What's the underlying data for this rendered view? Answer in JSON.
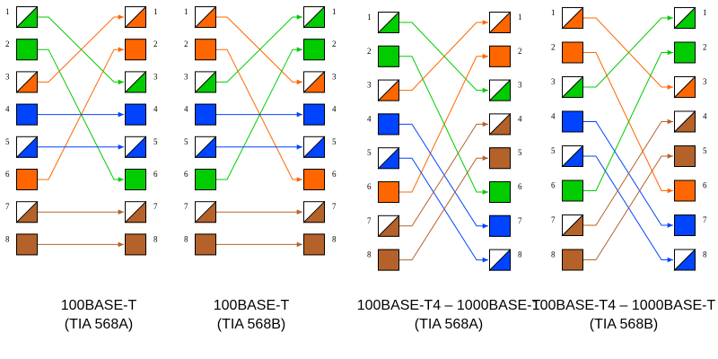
{
  "colors": {
    "green": "#00cc00",
    "orange": "#ff6600",
    "blue": "#0044ff",
    "brown": "#b5622a",
    "white": "#ffffff",
    "border": "#000000"
  },
  "diagrams": [
    {
      "title": "100BASE-T",
      "subtitle": "(TIA 568A)",
      "left_pins": [
        "1",
        "2",
        "3",
        "4",
        "5",
        "6",
        "7",
        "8"
      ],
      "right_pins": [
        "1",
        "2",
        "3",
        "4",
        "5",
        "6",
        "7",
        "8"
      ],
      "left_pairs": [
        {
          "pin": "1",
          "color": "green",
          "striped": true
        },
        {
          "pin": "2",
          "color": "green",
          "striped": false
        },
        {
          "pin": "3",
          "color": "orange",
          "striped": true
        },
        {
          "pin": "4",
          "color": "blue",
          "striped": false
        },
        {
          "pin": "5",
          "color": "blue",
          "striped": true
        },
        {
          "pin": "6",
          "color": "orange",
          "striped": false
        },
        {
          "pin": "7",
          "color": "brown",
          "striped": true
        },
        {
          "pin": "8",
          "color": "brown",
          "striped": false
        }
      ],
      "right_pairs": [
        {
          "pin": "1",
          "color": "orange",
          "striped": true
        },
        {
          "pin": "2",
          "color": "orange",
          "striped": false
        },
        {
          "pin": "3",
          "color": "green",
          "striped": true
        },
        {
          "pin": "4",
          "color": "blue",
          "striped": false
        },
        {
          "pin": "5",
          "color": "blue",
          "striped": true
        },
        {
          "pin": "6",
          "color": "green",
          "striped": false
        },
        {
          "pin": "7",
          "color": "brown",
          "striped": true
        },
        {
          "pin": "8",
          "color": "brown",
          "striped": false
        }
      ],
      "connections": [
        {
          "from": 1,
          "to": 3,
          "color": "green"
        },
        {
          "from": 2,
          "to": 6,
          "color": "green"
        },
        {
          "from": 3,
          "to": 1,
          "color": "orange"
        },
        {
          "from": 6,
          "to": 2,
          "color": "orange"
        },
        {
          "from": 4,
          "to": 4,
          "color": "blue"
        },
        {
          "from": 5,
          "to": 5,
          "color": "blue"
        },
        {
          "from": 7,
          "to": 7,
          "color": "brown"
        },
        {
          "from": 8,
          "to": 8,
          "color": "brown"
        }
      ]
    },
    {
      "title": "100BASE-T",
      "subtitle": "(TIA 568B)",
      "left_pins": [
        "1",
        "2",
        "3",
        "4",
        "5",
        "6",
        "7",
        "8"
      ],
      "right_pins": [
        "1",
        "2",
        "3",
        "4",
        "5",
        "6",
        "7",
        "8"
      ],
      "left_pairs": [
        {
          "pin": "1",
          "color": "orange",
          "striped": true
        },
        {
          "pin": "2",
          "color": "orange",
          "striped": false
        },
        {
          "pin": "3",
          "color": "green",
          "striped": true
        },
        {
          "pin": "4",
          "color": "blue",
          "striped": false
        },
        {
          "pin": "5",
          "color": "blue",
          "striped": true
        },
        {
          "pin": "6",
          "color": "green",
          "striped": false
        },
        {
          "pin": "7",
          "color": "brown",
          "striped": true
        },
        {
          "pin": "8",
          "color": "brown",
          "striped": false
        }
      ],
      "right_pairs": [
        {
          "pin": "1",
          "color": "green",
          "striped": true
        },
        {
          "pin": "2",
          "color": "green",
          "striped": false
        },
        {
          "pin": "3",
          "color": "orange",
          "striped": true
        },
        {
          "pin": "4",
          "color": "blue",
          "striped": false
        },
        {
          "pin": "5",
          "color": "blue",
          "striped": true
        },
        {
          "pin": "6",
          "color": "orange",
          "striped": false
        },
        {
          "pin": "7",
          "color": "brown",
          "striped": true
        },
        {
          "pin": "8",
          "color": "brown",
          "striped": false
        }
      ],
      "connections": [
        {
          "from": 1,
          "to": 3,
          "color": "orange"
        },
        {
          "from": 2,
          "to": 6,
          "color": "orange"
        },
        {
          "from": 3,
          "to": 1,
          "color": "green"
        },
        {
          "from": 6,
          "to": 2,
          "color": "green"
        },
        {
          "from": 4,
          "to": 4,
          "color": "blue"
        },
        {
          "from": 5,
          "to": 5,
          "color": "blue"
        },
        {
          "from": 7,
          "to": 7,
          "color": "brown"
        },
        {
          "from": 8,
          "to": 8,
          "color": "brown"
        }
      ]
    },
    {
      "title": "100BASE-T4 – 1000BASE-T",
      "subtitle": "(TIA 568A)",
      "left_pins": [
        "1",
        "2",
        "3",
        "4",
        "5",
        "6",
        "7",
        "8"
      ],
      "right_pins": [
        "1",
        "2",
        "3",
        "4",
        "5",
        "6",
        "7",
        "8"
      ],
      "left_pairs": [
        {
          "pin": "1",
          "color": "green",
          "striped": true
        },
        {
          "pin": "2",
          "color": "green",
          "striped": false
        },
        {
          "pin": "3",
          "color": "orange",
          "striped": true
        },
        {
          "pin": "4",
          "color": "blue",
          "striped": false
        },
        {
          "pin": "5",
          "color": "blue",
          "striped": true
        },
        {
          "pin": "6",
          "color": "orange",
          "striped": false
        },
        {
          "pin": "7",
          "color": "brown",
          "striped": true
        },
        {
          "pin": "8",
          "color": "brown",
          "striped": false
        }
      ],
      "right_pairs": [
        {
          "pin": "1",
          "color": "orange",
          "striped": true
        },
        {
          "pin": "2",
          "color": "orange",
          "striped": false
        },
        {
          "pin": "3",
          "color": "green",
          "striped": true
        },
        {
          "pin": "4",
          "color": "brown",
          "striped": true
        },
        {
          "pin": "5",
          "color": "brown",
          "striped": false
        },
        {
          "pin": "6",
          "color": "green",
          "striped": false
        },
        {
          "pin": "7",
          "color": "blue",
          "striped": false
        },
        {
          "pin": "8",
          "color": "blue",
          "striped": true
        }
      ],
      "connections": [
        {
          "from": 1,
          "to": 3,
          "color": "green"
        },
        {
          "from": 2,
          "to": 6,
          "color": "green"
        },
        {
          "from": 3,
          "to": 1,
          "color": "orange"
        },
        {
          "from": 6,
          "to": 2,
          "color": "orange"
        },
        {
          "from": 4,
          "to": 7,
          "color": "blue"
        },
        {
          "from": 5,
          "to": 8,
          "color": "blue"
        },
        {
          "from": 7,
          "to": 4,
          "color": "brown"
        },
        {
          "from": 8,
          "to": 5,
          "color": "brown"
        }
      ]
    },
    {
      "title": "100BASE-T4 – 1000BASE-T",
      "subtitle": "(TIA 568B)",
      "left_pins": [
        "1",
        "2",
        "3",
        "4",
        "5",
        "6",
        "7",
        "8"
      ],
      "right_pins": [
        "1",
        "2",
        "3",
        "4",
        "5",
        "6",
        "7",
        "8"
      ],
      "left_pairs": [
        {
          "pin": "1",
          "color": "orange",
          "striped": true
        },
        {
          "pin": "2",
          "color": "orange",
          "striped": false
        },
        {
          "pin": "3",
          "color": "green",
          "striped": true
        },
        {
          "pin": "4",
          "color": "blue",
          "striped": false
        },
        {
          "pin": "5",
          "color": "blue",
          "striped": true
        },
        {
          "pin": "6",
          "color": "green",
          "striped": false
        },
        {
          "pin": "7",
          "color": "brown",
          "striped": true
        },
        {
          "pin": "8",
          "color": "brown",
          "striped": false
        }
      ],
      "right_pairs": [
        {
          "pin": "1",
          "color": "green",
          "striped": true
        },
        {
          "pin": "2",
          "color": "green",
          "striped": false
        },
        {
          "pin": "3",
          "color": "orange",
          "striped": true
        },
        {
          "pin": "4",
          "color": "brown",
          "striped": true
        },
        {
          "pin": "5",
          "color": "brown",
          "striped": false
        },
        {
          "pin": "6",
          "color": "orange",
          "striped": false
        },
        {
          "pin": "7",
          "color": "blue",
          "striped": false
        },
        {
          "pin": "8",
          "color": "blue",
          "striped": true
        }
      ],
      "connections": [
        {
          "from": 1,
          "to": 3,
          "color": "orange"
        },
        {
          "from": 2,
          "to": 6,
          "color": "orange"
        },
        {
          "from": 3,
          "to": 1,
          "color": "green"
        },
        {
          "from": 6,
          "to": 2,
          "color": "green"
        },
        {
          "from": 4,
          "to": 7,
          "color": "blue"
        },
        {
          "from": 5,
          "to": 8,
          "color": "blue"
        },
        {
          "from": 7,
          "to": 4,
          "color": "brown"
        },
        {
          "from": 8,
          "to": 5,
          "color": "brown"
        }
      ]
    }
  ]
}
